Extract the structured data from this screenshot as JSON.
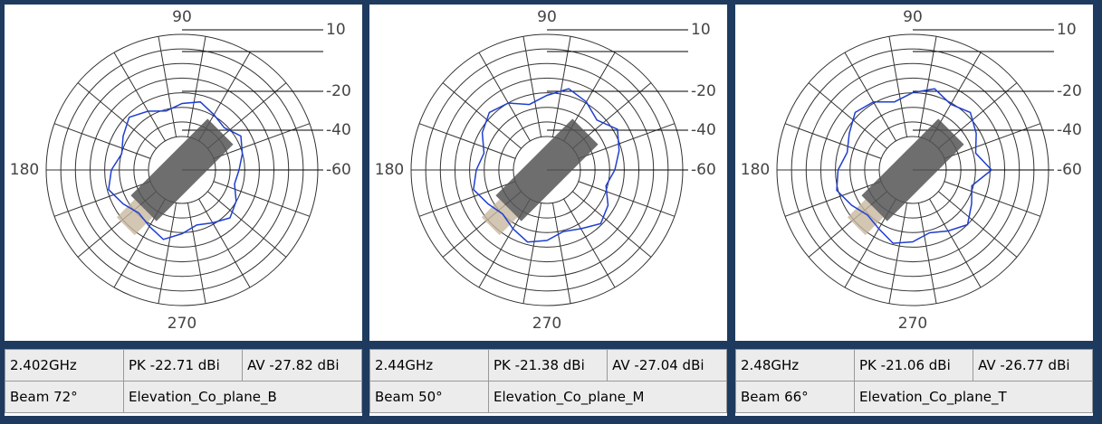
{
  "panels": [
    {
      "angle_labels": [
        "90",
        "180",
        "270"
      ],
      "radial_labels": [
        "10",
        "-20",
        "-40",
        "-60"
      ],
      "pattern": [
        0.42,
        0.46,
        0.5,
        0.44,
        0.47,
        0.52,
        0.49,
        0.45,
        0.5,
        0.55,
        0.5,
        0.46,
        0.52,
        0.56,
        0.5,
        0.45,
        0.48,
        0.53,
        0.47,
        0.42,
        0.45,
        0.5,
        0.46,
        0.4
      ],
      "freq": "2.402GHz",
      "pk": "PK -22.71 dBi",
      "av": "AV -27.82 dBi",
      "beam": "Beam 72°",
      "plane": "Elevation_Co_plane_B"
    },
    {
      "angle_labels": [
        "90",
        "180",
        "270"
      ],
      "radial_labels": [
        "10",
        "-20",
        "-40",
        "-60"
      ],
      "pattern": [
        0.5,
        0.55,
        0.6,
        0.52,
        0.58,
        0.62,
        0.55,
        0.5,
        0.57,
        0.6,
        0.55,
        0.48,
        0.52,
        0.56,
        0.5,
        0.46,
        0.5,
        0.55,
        0.52,
        0.47,
        0.5,
        0.56,
        0.52,
        0.45
      ],
      "freq": "2.44GHz",
      "pk": "PK -21.38 dBi",
      "av": "AV -27.04 dBi",
      "beam": "Beam 50°",
      "plane": "Elevation_Co_plane_M"
    },
    {
      "angle_labels": [
        "90",
        "180",
        "270"
      ],
      "radial_labels": [
        "10",
        "-20",
        "-40",
        "-60"
      ],
      "pattern": [
        0.58,
        0.48,
        0.54,
        0.6,
        0.56,
        0.62,
        0.57,
        0.52,
        0.58,
        0.6,
        0.54,
        0.5,
        0.55,
        0.58,
        0.52,
        0.47,
        0.5,
        0.56,
        0.53,
        0.48,
        0.52,
        0.57,
        0.5,
        0.45
      ],
      "freq": "2.48GHz",
      "pk": "PK -21.06 dBi",
      "av": "AV -26.77 dBi",
      "beam": "Beam 66°",
      "plane": "Elevation_Co_plane_T"
    }
  ]
}
